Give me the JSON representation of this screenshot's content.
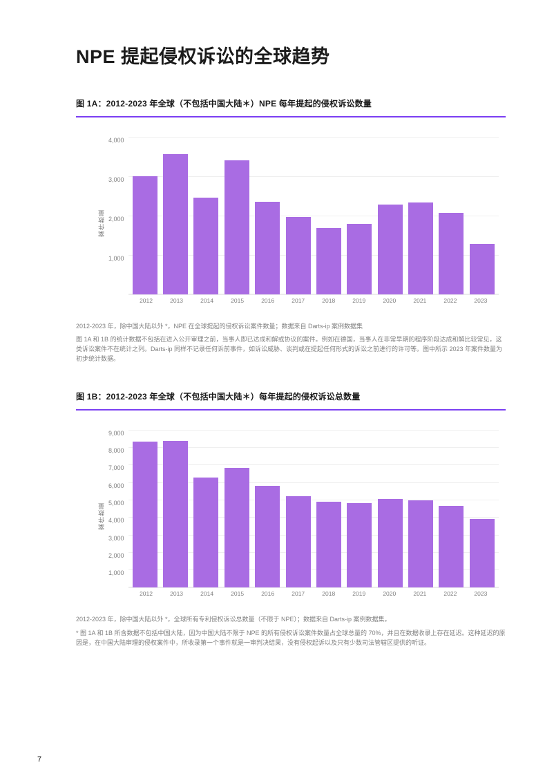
{
  "page": {
    "title": "NPE 提起侵权诉讼的全球趋势",
    "number": "7"
  },
  "chartA": {
    "type": "bar",
    "title": "图 1A：2012-2023 年全球（不包括中国大陆＊）NPE 每年提起的侵权诉讼数量",
    "ylabel": "案件数量",
    "categories": [
      "2012",
      "2013",
      "2014",
      "2015",
      "2016",
      "2017",
      "2018",
      "2019",
      "2020",
      "2021",
      "2022",
      "2023"
    ],
    "values": [
      3000,
      3550,
      2450,
      3400,
      2350,
      1950,
      1680,
      1780,
      2280,
      2320,
      2060,
      1280
    ],
    "ylim": [
      0,
      4000
    ],
    "ytick_step": 1000,
    "ytick_labels": [
      "4,000",
      "3,000",
      "2,000",
      "1,000",
      ""
    ],
    "bar_color": "#a96ce3",
    "grid_color": "#efefef",
    "background_color": "#ffffff",
    "label_fontsize": 9,
    "caption1": "2012-2023 年，除中国大陆以外 *，NPE 在全球提起的侵权诉讼案件数量；数据来自 Darts-ip 案例数据集",
    "caption2": "图 1A 和 1B 的统计数据不包括在进入公开审理之前，当事人即已达成和解或协议的案件。例如在德国，当事人在非常早期的程序阶段达成和解比较常见，这类诉讼案件不在统计之列。Darts-ip 同样不记录任何诉前事件，如诉讼威胁、谈判或在提起任何形式的诉讼之前进行的许可等。图中所示 2023 年案件数量为初步统计数据。"
  },
  "chartB": {
    "type": "bar",
    "title": "图 1B：2012-2023 年全球（不包括中国大陆＊）每年提起的侵权诉讼总数量",
    "ylabel": "案件数量",
    "categories": [
      "2012",
      "2013",
      "2014",
      "2015",
      "2016",
      "2017",
      "2018",
      "2019",
      "2020",
      "2021",
      "2022",
      "2023"
    ],
    "values": [
      8300,
      8350,
      6250,
      6800,
      5800,
      5200,
      4900,
      4800,
      5050,
      4950,
      4650,
      3900
    ],
    "ylim": [
      0,
      9000
    ],
    "ytick_step": 1000,
    "ytick_labels": [
      "9,000",
      "8,000",
      "7,000",
      "6,000",
      "5,000",
      "4,000",
      "3,000",
      "2,000",
      "1,000",
      ""
    ],
    "bar_color": "#a96ce3",
    "grid_color": "#efefef",
    "background_color": "#ffffff",
    "label_fontsize": 9,
    "caption1": "2012-2023 年，除中国大陆以外 *，全球所有专利侵权诉讼总数量（不限于 NPE）；数据来自 Darts-ip 案例数据集。",
    "caption2": "* 图 1A 和 1B 所含数据不包括中国大陆，因为中国大陆不限于 NPE 的所有侵权诉讼案件数量占全球总量的 70%，并且在数据收录上存在延迟。这种延迟的原因是，在中国大陆审理的侵权案件中，所收录第一个事件就是一审判决结果，没有侵权起诉以及只有少数司法管辖区提供的听证。"
  }
}
